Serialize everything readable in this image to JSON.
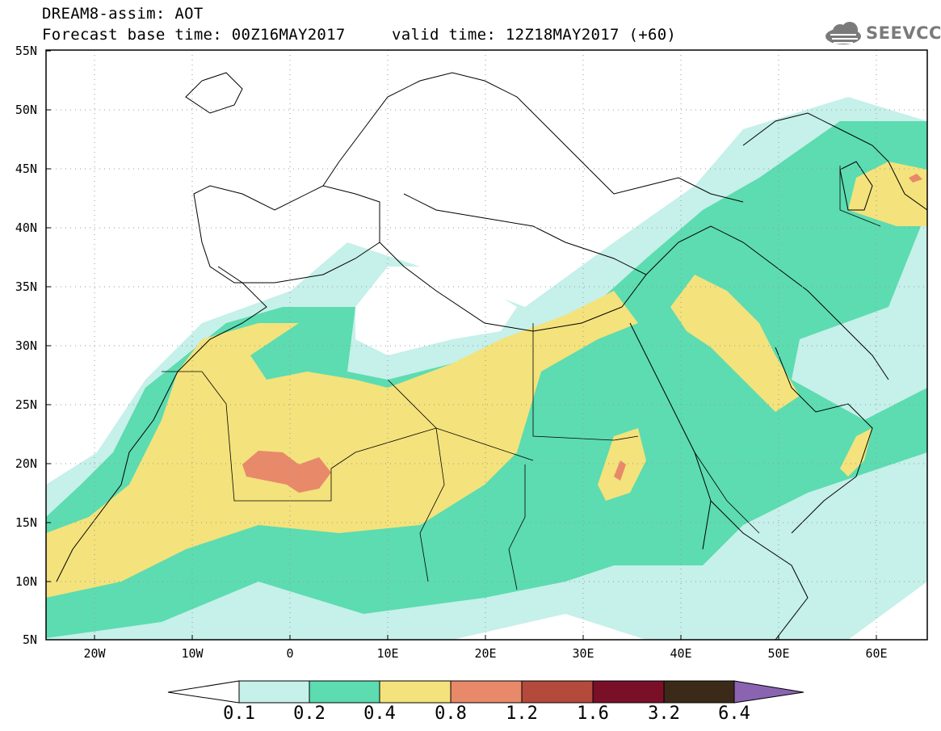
{
  "header": {
    "line1": "DREAM8-assim: AOT",
    "line2": "Forecast base time: 00Z16MAY2017",
    "line3": "valid time: 12Z18MAY2017 (+60)"
  },
  "logo": {
    "text": "SEEVCCC",
    "icon": "cloud-icon"
  },
  "map": {
    "lat_labels": [
      "55N",
      "50N",
      "45N",
      "40N",
      "35N",
      "30N",
      "25N",
      "20N",
      "15N",
      "10N",
      "5N"
    ],
    "lon_labels": [
      "20W",
      "10W",
      "0",
      "10E",
      "20E",
      "30E",
      "40E",
      "50E",
      "60E"
    ]
  },
  "colorbar": {
    "labels": [
      "0.1",
      "0.2",
      "0.4",
      "0.8",
      "1.2",
      "1.6",
      "3.2",
      "6.4"
    ],
    "colors": [
      "#ffffff",
      "#c8f0ea",
      "#5ade b0",
      "#f4e27a",
      "#e8896a",
      "#b34a3c",
      "#7a1028",
      "#3c2a18",
      "#8a64b0"
    ]
  },
  "palette": {
    "aot_0_1_0_2": "#c6f0ea",
    "aot_0_2_0_4": "#5cdcb0",
    "aot_0_4_0_8": "#f4e27c",
    "aot_0_8_1_2": "#e8896a",
    "aot_1_2_1_6": "#b34a3c",
    "aot_1_6_3_2": "#7a1028",
    "aot_3_2_6_4": "#3c2a18",
    "aot_above": "#8a64b0"
  }
}
